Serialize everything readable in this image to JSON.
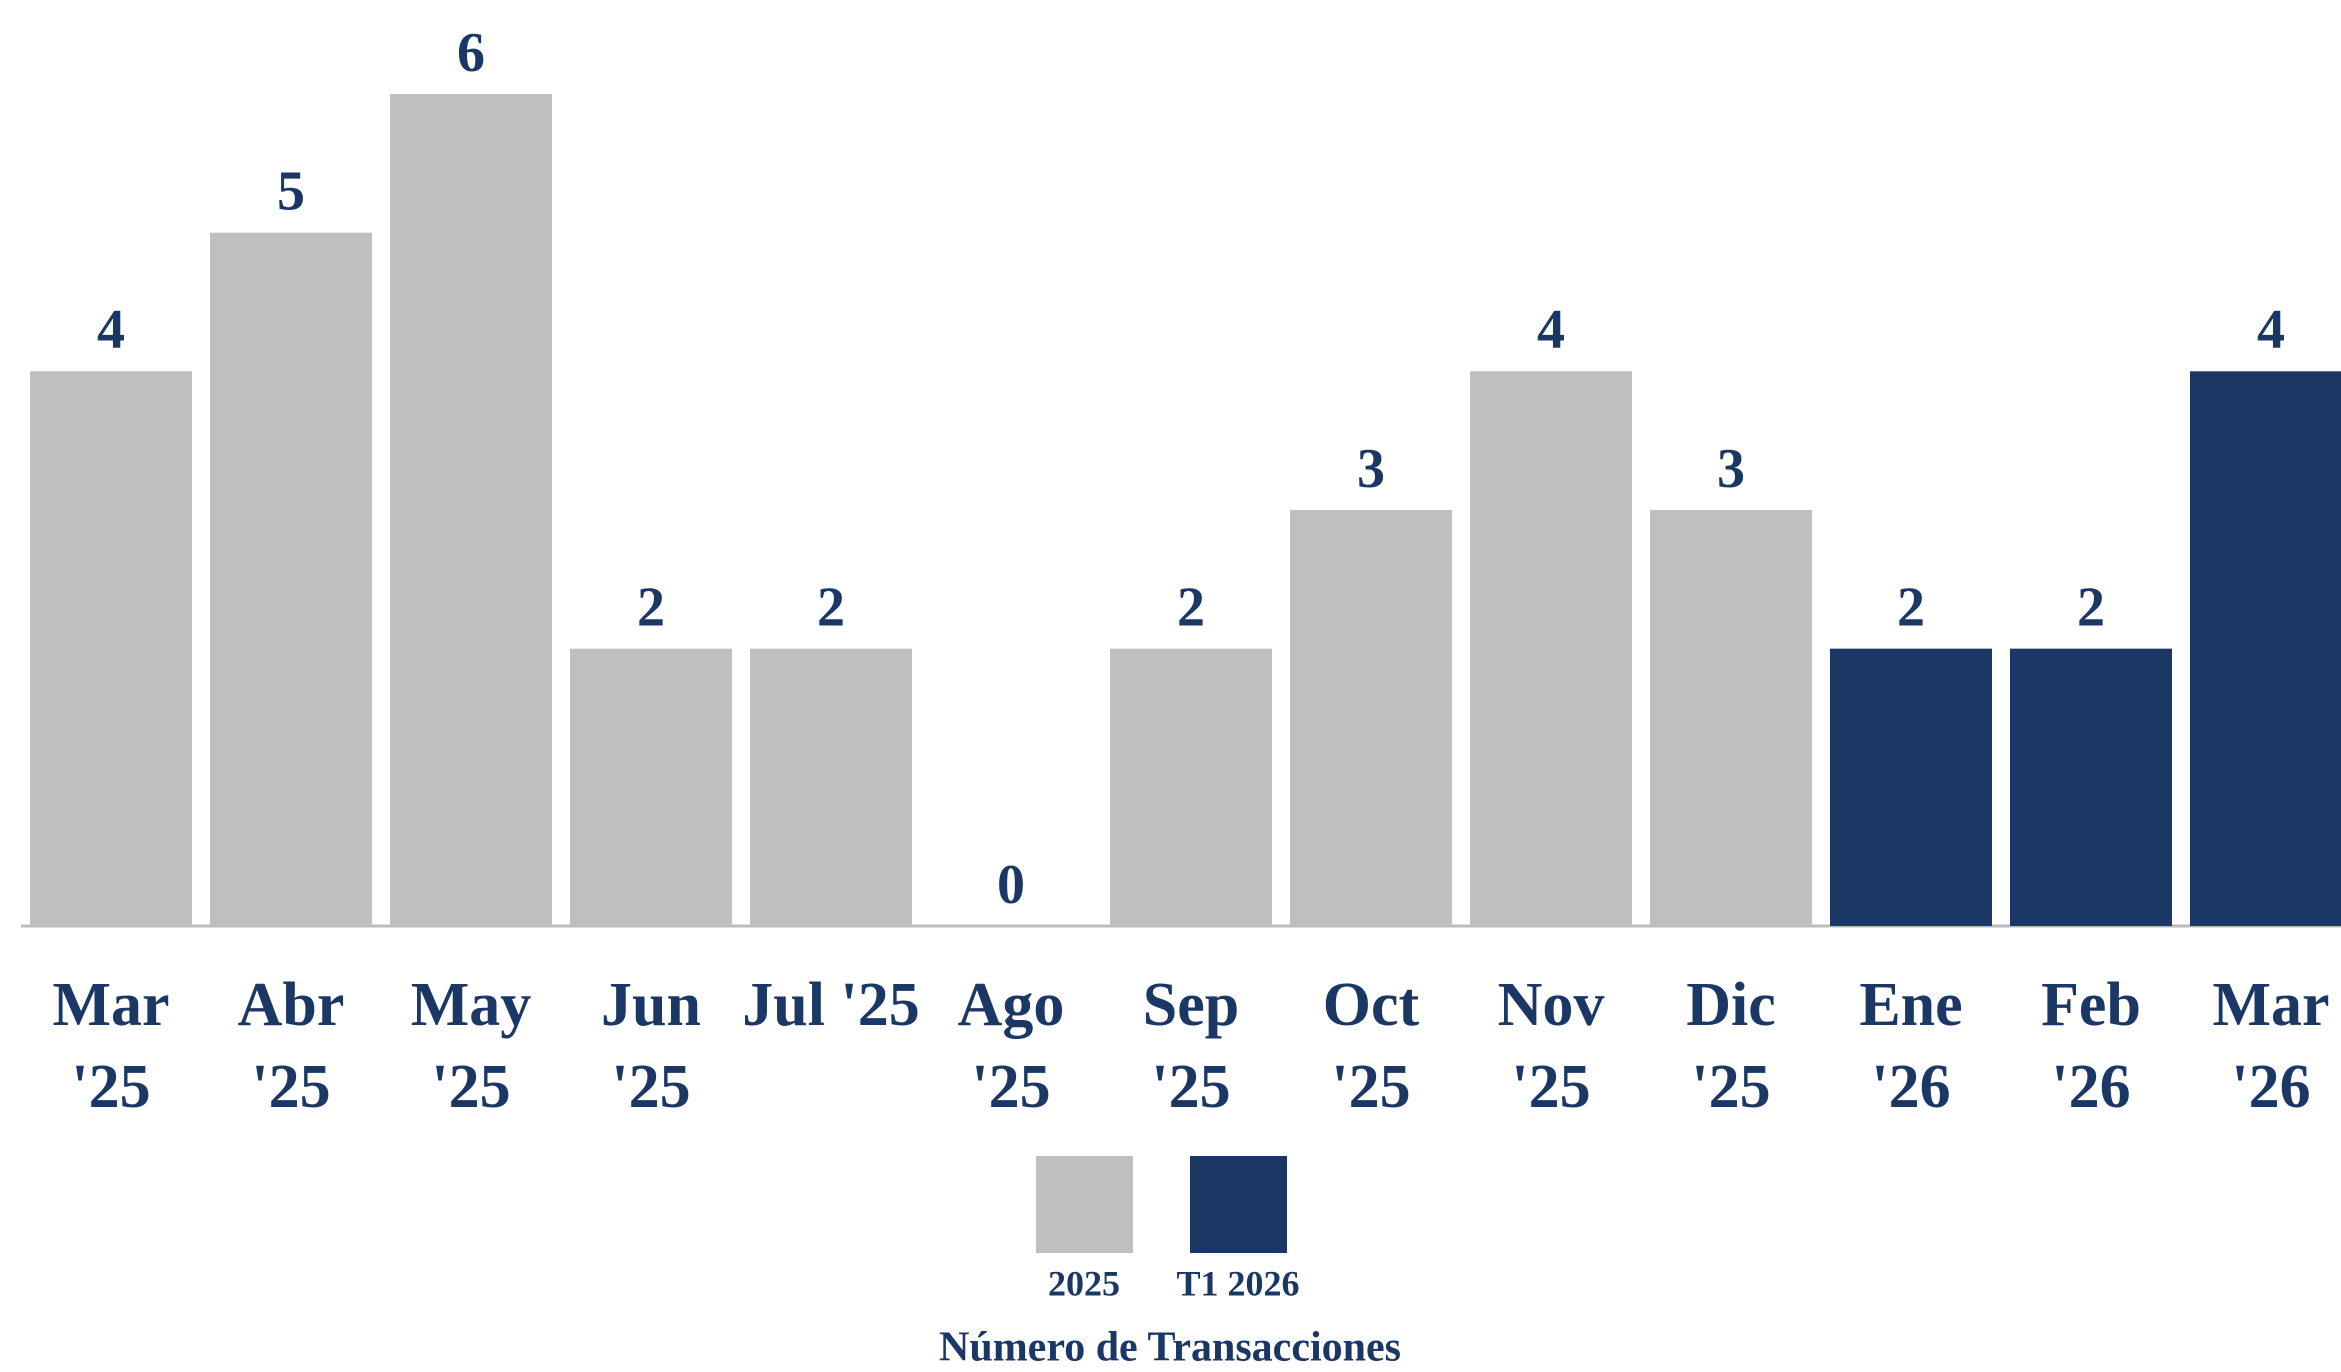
{
  "chart_data": {
    "type": "bar",
    "categories": [
      "Mar '25",
      "Abr '25",
      "May '25",
      "Jun '25",
      "Jul '25",
      "Ago '25",
      "Sep '25",
      "Oct '25",
      "Nov '25",
      "Dic '25",
      "Ene '26",
      "Feb '26",
      "Mar '26"
    ],
    "series": [
      {
        "name": "2025",
        "color": "#bfbfbf",
        "values": [
          4,
          5,
          6,
          2,
          2,
          0,
          2,
          3,
          4,
          3,
          null,
          null,
          null
        ]
      },
      {
        "name": "T1 2026",
        "color": "#1b3766",
        "values": [
          null,
          null,
          null,
          null,
          null,
          null,
          null,
          null,
          null,
          null,
          2,
          2,
          4
        ]
      }
    ],
    "ylim": [
      0,
      6
    ],
    "legend_title": "Número de Transacciones"
  }
}
